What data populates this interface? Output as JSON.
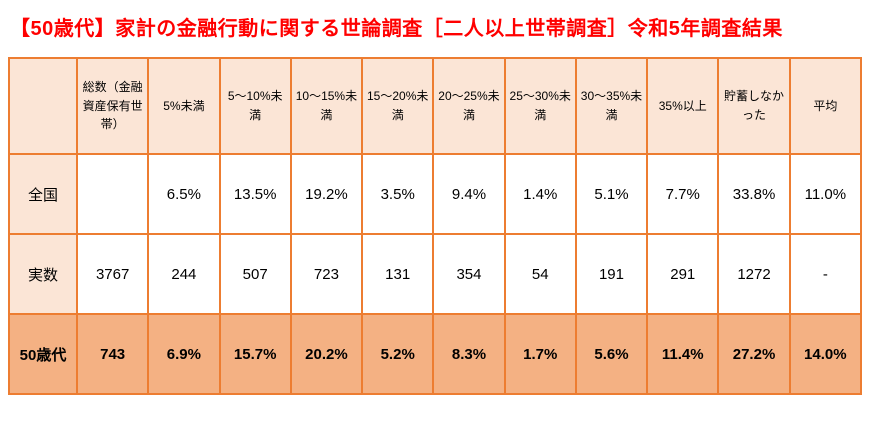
{
  "title": "【50歳代】家計の金融行動に関する世論調査［二人以上世帯調査］令和5年調査結果",
  "colors": {
    "title_text": "#ff0000",
    "table_border": "#ed7d31",
    "header_background": "#fbe5d6",
    "highlight_row_background": "#f4b183"
  },
  "chart_data": {
    "type": "table",
    "title": "【50歳代】家計の金融行動に関する世論調査［二人以上世帯調査］令和5年調査結果",
    "columns": [
      "",
      "総数（金融資産保有世帯）",
      "5%未満",
      "5～10%未満",
      "10～15%未満",
      "15～20%未満",
      "20～25%未満",
      "25～30%未満",
      "30～35%未満",
      "35%以上",
      "貯蓄しなかった",
      "平均"
    ],
    "rows": [
      {
        "label": "全国",
        "values": [
          "",
          "6.5%",
          "13.5%",
          "19.2%",
          "3.5%",
          "9.4%",
          "1.4%",
          "5.1%",
          "7.7%",
          "33.8%",
          "11.0%"
        ],
        "highlight": false
      },
      {
        "label": "実数",
        "values": [
          "3767",
          "244",
          "507",
          "723",
          "131",
          "354",
          "54",
          "191",
          "291",
          "1272",
          "-"
        ],
        "highlight": false
      },
      {
        "label": "50歳代",
        "values": [
          "743",
          "6.9%",
          "15.7%",
          "20.2%",
          "5.2%",
          "8.3%",
          "1.7%",
          "5.6%",
          "11.4%",
          "27.2%",
          "14.0%"
        ],
        "highlight": true
      }
    ]
  }
}
